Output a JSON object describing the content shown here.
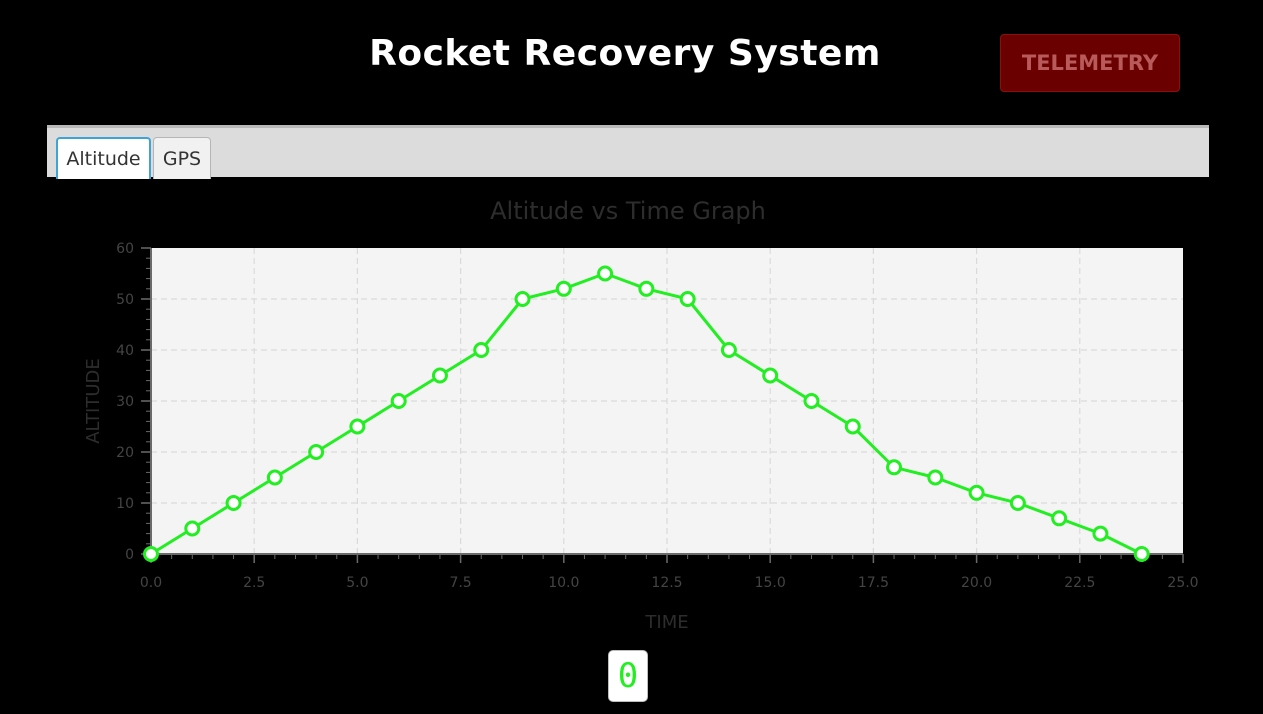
{
  "header": {
    "title": "Rocket Recovery System",
    "telemetry_button": "TELEMETRY"
  },
  "tabs": [
    {
      "label": "Altitude",
      "active": true
    },
    {
      "label": "GPS",
      "active": false
    }
  ],
  "counter": {
    "value": "0"
  },
  "colors": {
    "series": "#22ee22",
    "plot_background": "#f4f4f4",
    "telemetry_button_bg": "#6b0000",
    "active_tab_border": "#3ea3d6"
  },
  "chart_data": {
    "type": "line",
    "title": "Altitude vs Time Graph",
    "xlabel": "TIME",
    "ylabel": "ALTITUDE",
    "xlim": [
      0,
      25
    ],
    "ylim": [
      0,
      60
    ],
    "x_ticks": [
      "0.0",
      "2.5",
      "5.0",
      "7.5",
      "10.0",
      "12.5",
      "15.0",
      "17.5",
      "20.0",
      "22.5",
      "25.0"
    ],
    "y_ticks": [
      "0",
      "10",
      "20",
      "30",
      "40",
      "50",
      "60"
    ],
    "grid": true,
    "series": [
      {
        "x": [
          0,
          1,
          2,
          3,
          4,
          5,
          6,
          7,
          8,
          9,
          10,
          11,
          12,
          13,
          14,
          15,
          16,
          17,
          18,
          19,
          20,
          21,
          22,
          23,
          24
        ],
        "y": [
          0,
          5,
          10,
          15,
          20,
          25,
          30,
          35,
          40,
          50,
          52,
          55,
          52,
          50,
          40,
          35,
          30,
          25,
          17,
          15,
          12,
          10,
          7,
          4,
          0
        ]
      }
    ]
  }
}
